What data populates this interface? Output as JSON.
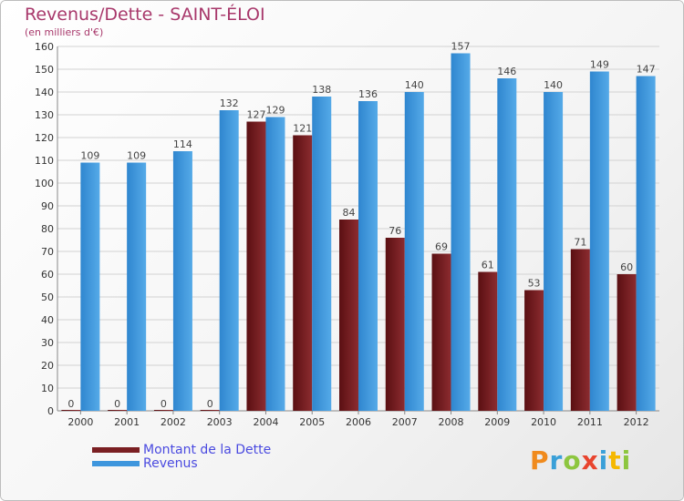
{
  "chart_data": {
    "type": "bar",
    "title": "Revenus/Dette - SAINT-ÉLOI",
    "subtitle": "(en milliers d'€)",
    "categories": [
      "2000",
      "2001",
      "2002",
      "2003",
      "2004",
      "2005",
      "2006",
      "2007",
      "2008",
      "2009",
      "2010",
      "2011",
      "2012"
    ],
    "series": [
      {
        "name": "Montant de la Dette",
        "color": "#7a1f22",
        "values": [
          0,
          0,
          0,
          0,
          127,
          121,
          84,
          76,
          69,
          61,
          53,
          71,
          60
        ]
      },
      {
        "name": "Revenus",
        "color": "#3e96dd",
        "values": [
          109,
          109,
          114,
          132,
          129,
          138,
          136,
          140,
          157,
          146,
          140,
          149,
          147
        ]
      }
    ],
    "ylim": [
      0,
      160
    ],
    "yticks": [
      0,
      10,
      20,
      30,
      40,
      50,
      60,
      70,
      80,
      90,
      100,
      110,
      120,
      130,
      140,
      150,
      160
    ],
    "grid": true,
    "legend_position": "bottom-left"
  },
  "logo": {
    "letters": [
      {
        "ch": "P",
        "color": "#f08a1c"
      },
      {
        "ch": "r",
        "color": "#3aa0d8"
      },
      {
        "ch": "o",
        "color": "#8dc63f"
      },
      {
        "ch": "x",
        "color": "#e8442e"
      },
      {
        "ch": "i",
        "color": "#3aa0d8"
      },
      {
        "ch": "t",
        "color": "#f5b800"
      },
      {
        "ch": "i",
        "color": "#8dc63f"
      }
    ]
  }
}
